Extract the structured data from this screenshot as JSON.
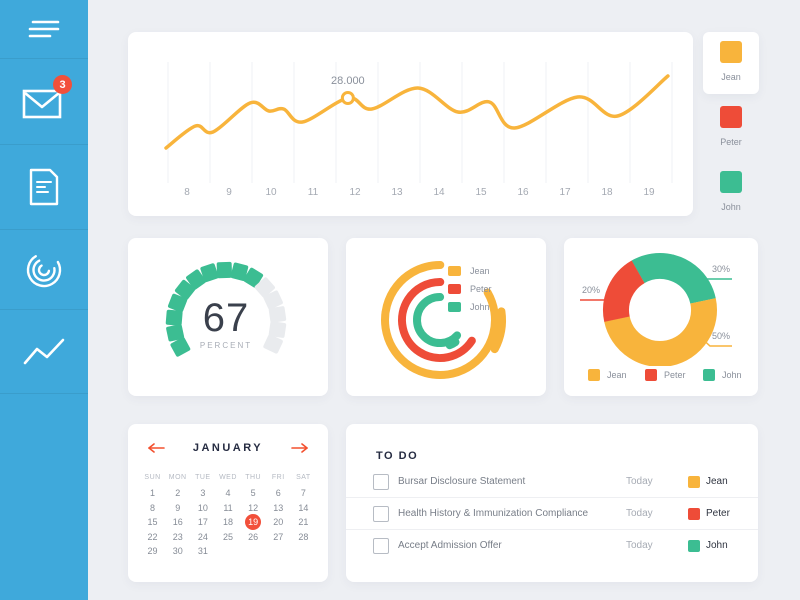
{
  "app": {
    "colors": {
      "background": "#EDEFF3",
      "sidebar_blue": "#3FA9DB",
      "yellow": "#F8B43C",
      "red": "#EE4C38",
      "green": "#3CBD92",
      "highlight_red": "#F2503B",
      "navy": "#262C42",
      "text_grey": "#8A909B"
    }
  },
  "sidebar": {
    "items": [
      {
        "icon": "menu-icon"
      },
      {
        "icon": "mail-icon",
        "badge": "3"
      },
      {
        "icon": "document-icon"
      },
      {
        "icon": "activity-rings-icon"
      },
      {
        "icon": "trend-line-icon"
      }
    ]
  },
  "legend_panel": {
    "items": [
      {
        "label": "Jean",
        "color": "#F8B43C",
        "selected": true
      },
      {
        "label": "Peter",
        "color": "#EE4C38",
        "selected": false
      },
      {
        "label": "John",
        "color": "#3CBD92",
        "selected": false
      }
    ]
  },
  "gauge": {
    "value": "67",
    "unit": "PERCENT"
  },
  "donut_callouts": {
    "peter": "20%",
    "john": "30%",
    "jean": "50%"
  },
  "calendar": {
    "month": "JANUARY",
    "day_headers": [
      "SUN",
      "MON",
      "TUE",
      "WED",
      "THU",
      "FRI",
      "SAT"
    ],
    "weeks": [
      [
        "1",
        "2",
        "3",
        "4",
        "5",
        "6",
        "7"
      ],
      [
        "8",
        "9",
        "10",
        "11",
        "12",
        "13",
        "14"
      ],
      [
        "15",
        "16",
        "17",
        "18",
        "19",
        "20",
        "21"
      ],
      [
        "22",
        "23",
        "24",
        "25",
        "26",
        "27",
        "28"
      ],
      [
        "29",
        "30",
        "31",
        "",
        "",
        "",
        ""
      ]
    ],
    "selected_date": "19"
  },
  "todo": {
    "title": "TO DO",
    "due_label": "Today",
    "rows": [
      {
        "task": "Bursar Disclosure Statement",
        "due": "Today",
        "assignee": "Jean",
        "color": "#F8B43C"
      },
      {
        "task": "Health History & Immunization Compliance",
        "due": "Today",
        "assignee": "Peter",
        "color": "#EE4C38"
      },
      {
        "task": "Accept Admission Offer",
        "due": "Today",
        "assignee": "John",
        "color": "#3CBD92"
      }
    ]
  },
  "chart_data": [
    {
      "id": "daily-activity-line",
      "type": "line",
      "x_ticks": [
        "8",
        "9",
        "10",
        "11",
        "12",
        "13",
        "14",
        "15",
        "16",
        "17",
        "18",
        "19"
      ],
      "x_range": [
        7.5,
        19.5
      ],
      "grid": "vertical-gridlines-only",
      "legend": [
        "Jean",
        "Peter",
        "John"
      ],
      "legend_position": "right",
      "annotation": {
        "x": 11.83,
        "value": 28.0,
        "label": "28.000"
      },
      "series": [
        {
          "name": "Jean",
          "color": "#F8B43C",
          "points": [
            {
              "x": 7.5,
              "value": 18.0
            },
            {
              "x": 8.2,
              "value": 22.4
            },
            {
              "x": 8.62,
              "value": 21.2
            },
            {
              "x": 9.5,
              "value": 27.0
            },
            {
              "x": 9.95,
              "value": 25.4
            },
            {
              "x": 10.3,
              "value": 25.8
            },
            {
              "x": 10.75,
              "value": 23.2
            },
            {
              "x": 11.83,
              "value": 28.0
            },
            {
              "x": 12.4,
              "value": 25.8
            },
            {
              "x": 13.5,
              "value": 30.0
            },
            {
              "x": 14.45,
              "value": 25.2
            },
            {
              "x": 15.2,
              "value": 27.2
            },
            {
              "x": 15.8,
              "value": 22.0
            },
            {
              "x": 17.3,
              "value": 28.2
            },
            {
              "x": 18.25,
              "value": 24.4
            },
            {
              "x": 19.45,
              "value": 32.4
            }
          ]
        }
      ]
    },
    {
      "id": "percent-gauge",
      "type": "gauge",
      "value": 67,
      "unit_label": "PERCENT",
      "segments_total": 15,
      "segments_filled": 10,
      "filled_color": "#3CBD92",
      "empty_color": "#E9EBEE"
    },
    {
      "id": "people-radial-progress",
      "type": "radial-progress",
      "rings": [
        {
          "name": "Jean",
          "color": "#F8B43C",
          "sweep_deg": 300,
          "tail_start_deg": 82,
          "tail_sweep_deg": 36
        },
        {
          "name": "Peter",
          "color": "#EE4C38",
          "sweep_deg": 237,
          "tail_start_deg": 0,
          "tail_sweep_deg": 0
        },
        {
          "name": "John",
          "color": "#3CBD92",
          "sweep_deg": 228,
          "tail_start_deg": 145,
          "tail_sweep_deg": 14
        }
      ],
      "legend": [
        "Jean",
        "Peter",
        "John"
      ]
    },
    {
      "id": "people-donut",
      "type": "pie",
      "start_angle_deg": 330,
      "slices": [
        {
          "label": "John",
          "pct": 30,
          "color": "#3CBD92",
          "callout": "30%"
        },
        {
          "label": "Jean",
          "pct": 50,
          "color": "#F8B43C",
          "callout": "50%"
        },
        {
          "label": "Peter",
          "pct": 20,
          "color": "#EE4C38",
          "callout": "20%"
        }
      ],
      "legend": [
        "Jean",
        "Peter",
        "John"
      ]
    }
  ]
}
